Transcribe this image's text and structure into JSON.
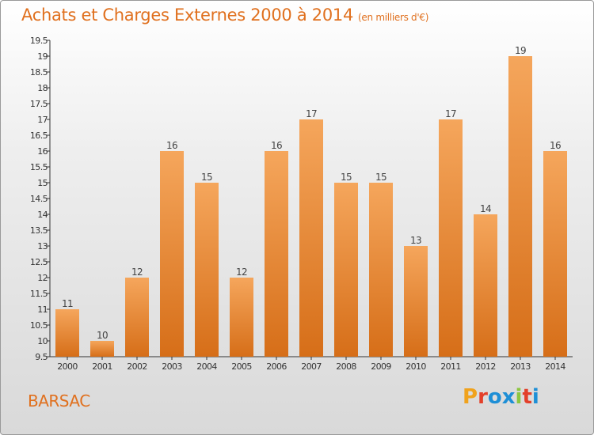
{
  "header": {
    "title": "Achats et Charges Externes 2000 à 2014",
    "unit": "(en milliers d'€)"
  },
  "footer": {
    "city": "BARSAC",
    "logo_text": "Proxiti",
    "logo_colors": [
      "#f0a21c",
      "#e3402a",
      "#1e8fd6",
      "#1e8fd6",
      "#8cc63f",
      "#e3402a",
      "#1e8fd6"
    ]
  },
  "colors": {
    "accent": "#e0701e",
    "bar_top": "#f5a65c",
    "bar_bottom": "#d66e18"
  },
  "chart_data": {
    "type": "bar",
    "title": "Achats et Charges Externes 2000 à 2014",
    "subtitle": "(en milliers d'€)",
    "categories": [
      "2000",
      "2001",
      "2002",
      "2003",
      "2004",
      "2005",
      "2006",
      "2007",
      "2008",
      "2009",
      "2010",
      "2011",
      "2012",
      "2013",
      "2014"
    ],
    "values": [
      11,
      10,
      12,
      16,
      15,
      12,
      16,
      17,
      15,
      15,
      13,
      17,
      14,
      19,
      16
    ],
    "data_labels": [
      "11",
      "10",
      "12",
      "16",
      "15",
      "12",
      "16",
      "17",
      "15",
      "15",
      "13",
      "17",
      "14",
      "19",
      "16"
    ],
    "ylim": [
      9.5,
      19.5
    ],
    "yticks": [
      "9.5",
      "10",
      "10.5",
      "11",
      "11.5",
      "12",
      "12.5",
      "13",
      "13.5",
      "14",
      "14.5",
      "15",
      "15.5",
      "16",
      "16.5",
      "17",
      "17.5",
      "18",
      "18.5",
      "19",
      "19.5"
    ],
    "xlabel": "",
    "ylabel": "",
    "grid": false,
    "legend": "none"
  }
}
